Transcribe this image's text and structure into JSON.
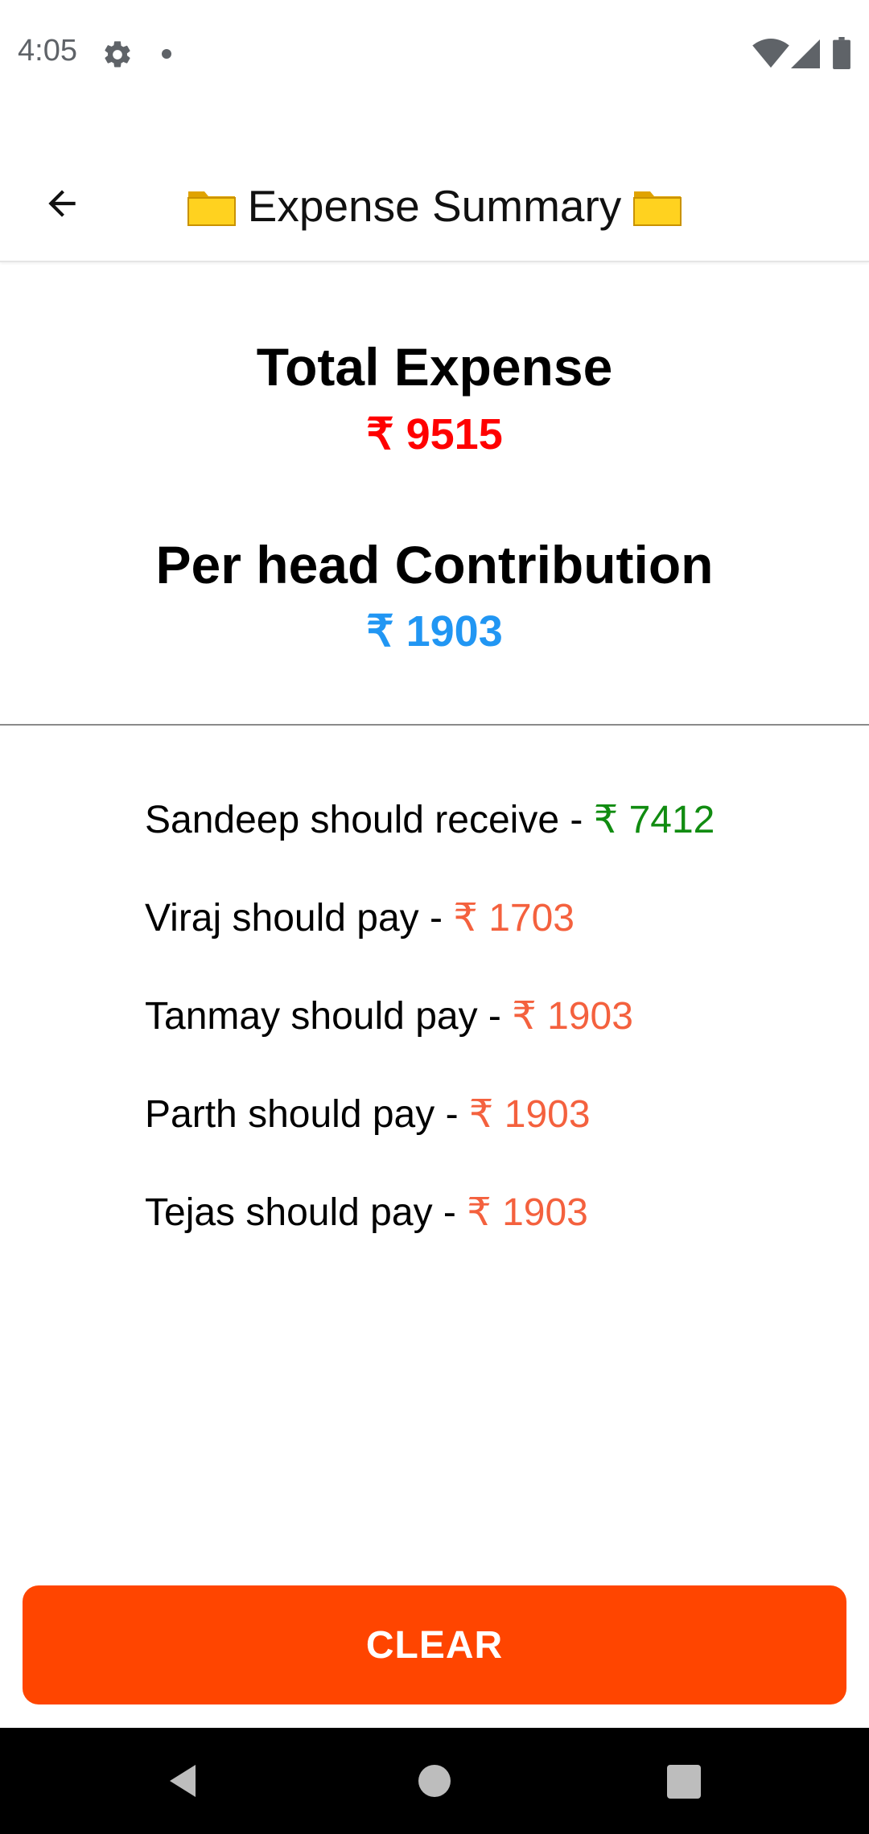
{
  "status_bar": {
    "time": "4:05",
    "icons": [
      "gear-icon",
      "dot-icon",
      "wifi-icon",
      "signal-icon",
      "battery-icon"
    ]
  },
  "app_bar": {
    "title": "Expense Summary",
    "leading_icon": "arrow-back-icon",
    "title_icons": [
      "folder-icon",
      "folder-icon"
    ]
  },
  "summary": {
    "total_label": "Total Expense",
    "total_value": "₹ 9515",
    "per_head_label": "Per head Contribution",
    "per_head_value": "₹ 1903"
  },
  "settlements": [
    {
      "text": "Sandeep should receive - ",
      "amount": "₹ 7412",
      "type": "receive"
    },
    {
      "text": "Viraj should pay - ",
      "amount": "₹ 1703",
      "type": "pay"
    },
    {
      "text": "Tanmay should pay - ",
      "amount": "₹ 1903",
      "type": "pay"
    },
    {
      "text": "Parth should pay - ",
      "amount": "₹ 1903",
      "type": "pay"
    },
    {
      "text": "Tejas should pay - ",
      "amount": "₹ 1903",
      "type": "pay"
    }
  ],
  "actions": {
    "clear_label": "CLEAR"
  },
  "colors": {
    "total": "#ff0000",
    "per_head": "#2196f3",
    "receive": "#118c11",
    "pay": "#f4613e",
    "clear_button": "#ff4500"
  },
  "nav_bar": {
    "icons": [
      "nav-back-icon",
      "nav-home-icon",
      "nav-recents-icon"
    ]
  }
}
